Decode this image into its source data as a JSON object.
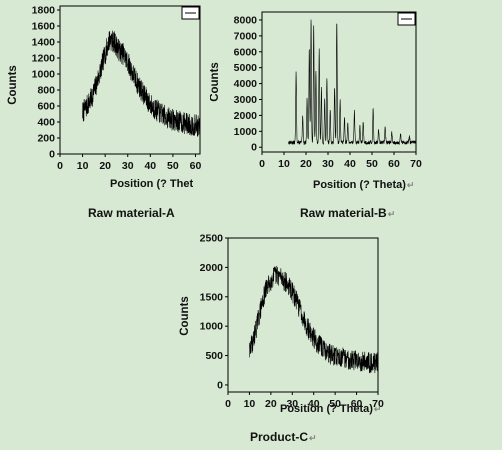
{
  "figure": {
    "panels": [
      {
        "caption": "Raw material-A",
        "return_mark": ""
      },
      {
        "caption": "Raw material-B",
        "return_mark": "↵"
      },
      {
        "caption": "Product-C",
        "return_mark": "↵"
      }
    ]
  },
  "chart_data": [
    {
      "type": "line",
      "title": "",
      "xlabel": "Position (?  Thet",
      "ylabel": "Counts",
      "xlim": [
        0,
        62
      ],
      "ylim": [
        0,
        1850
      ],
      "xticks": [
        0,
        10,
        20,
        30,
        40,
        50,
        60
      ],
      "yticks": [
        0,
        200,
        400,
        600,
        800,
        1000,
        1200,
        1400,
        1600,
        1800
      ],
      "grid": false,
      "legend": "top-right, empty",
      "color": "#000000",
      "series": [
        {
          "x": [
            10,
            12,
            14,
            16,
            18,
            20,
            22,
            24,
            26,
            28,
            30,
            32,
            34,
            36,
            38,
            40,
            42,
            44,
            46,
            48,
            50,
            52,
            54,
            56,
            58,
            60,
            62
          ],
          "y": [
            520,
            600,
            700,
            860,
            1050,
            1250,
            1440,
            1400,
            1300,
            1250,
            1150,
            1020,
            900,
            800,
            700,
            620,
            560,
            520,
            480,
            450,
            430,
            410,
            395,
            380,
            365,
            355,
            345
          ],
          "noise": 140
        }
      ]
    },
    {
      "type": "line",
      "title": "",
      "xlabel": "Position (?  Theta)",
      "ylabel": "Counts",
      "xlim": [
        0,
        70
      ],
      "ylim": [
        -300,
        8500
      ],
      "xticks": [
        0,
        10,
        20,
        30,
        40,
        50,
        60,
        70
      ],
      "yticks": [
        0,
        1000,
        2000,
        3000,
        4000,
        5000,
        6000,
        7000,
        8000
      ],
      "grid": false,
      "legend": "top-right, empty",
      "color": "#000000",
      "series": [
        {
          "x": [
            12,
            70
          ],
          "y": [
            300,
            300
          ],
          "noise": 120,
          "peaks": [
            {
              "x": 15.5,
              "y": 4400
            },
            {
              "x": 18.5,
              "y": 1600
            },
            {
              "x": 20.5,
              "y": 2800
            },
            {
              "x": 21.5,
              "y": 6000
            },
            {
              "x": 22.3,
              "y": 7700
            },
            {
              "x": 23.5,
              "y": 7300
            },
            {
              "x": 24.5,
              "y": 4500
            },
            {
              "x": 26.0,
              "y": 5800
            },
            {
              "x": 27.0,
              "y": 3400
            },
            {
              "x": 28.5,
              "y": 2700
            },
            {
              "x": 29.5,
              "y": 4000
            },
            {
              "x": 31.0,
              "y": 2000
            },
            {
              "x": 33.0,
              "y": 3500
            },
            {
              "x": 34.0,
              "y": 7700
            },
            {
              "x": 35.5,
              "y": 2700
            },
            {
              "x": 37.5,
              "y": 1600
            },
            {
              "x": 39.0,
              "y": 1200
            },
            {
              "x": 42.0,
              "y": 2000
            },
            {
              "x": 44.5,
              "y": 1000
            },
            {
              "x": 46.0,
              "y": 1300
            },
            {
              "x": 50.5,
              "y": 2100
            },
            {
              "x": 53.0,
              "y": 800
            },
            {
              "x": 56.0,
              "y": 1000
            },
            {
              "x": 59.0,
              "y": 600
            },
            {
              "x": 63.0,
              "y": 500
            },
            {
              "x": 67.0,
              "y": 450
            }
          ]
        }
      ]
    },
    {
      "type": "line",
      "title": "",
      "xlabel": "Position (?  Theta)",
      "ylabel": "Counts",
      "xlim": [
        0,
        70
      ],
      "ylim": [
        -120,
        2500
      ],
      "xticks": [
        0,
        10,
        20,
        30,
        40,
        50,
        60,
        70
      ],
      "yticks": [
        0,
        500,
        1000,
        1500,
        2000,
        2500
      ],
      "grid": false,
      "legend": "none",
      "color": "#000000",
      "series": [
        {
          "x": [
            10,
            12,
            14,
            16,
            18,
            20,
            22,
            24,
            26,
            28,
            30,
            32,
            34,
            36,
            38,
            40,
            42,
            44,
            46,
            48,
            50,
            52,
            54,
            56,
            58,
            60,
            62,
            64,
            66,
            68,
            70
          ],
          "y": [
            560,
            800,
            1100,
            1400,
            1650,
            1780,
            1870,
            1860,
            1790,
            1700,
            1580,
            1430,
            1260,
            1080,
            920,
            800,
            700,
            630,
            570,
            520,
            490,
            470,
            455,
            440,
            430,
            420,
            410,
            400,
            390,
            380,
            370
          ],
          "noise": 180
        }
      ]
    }
  ]
}
